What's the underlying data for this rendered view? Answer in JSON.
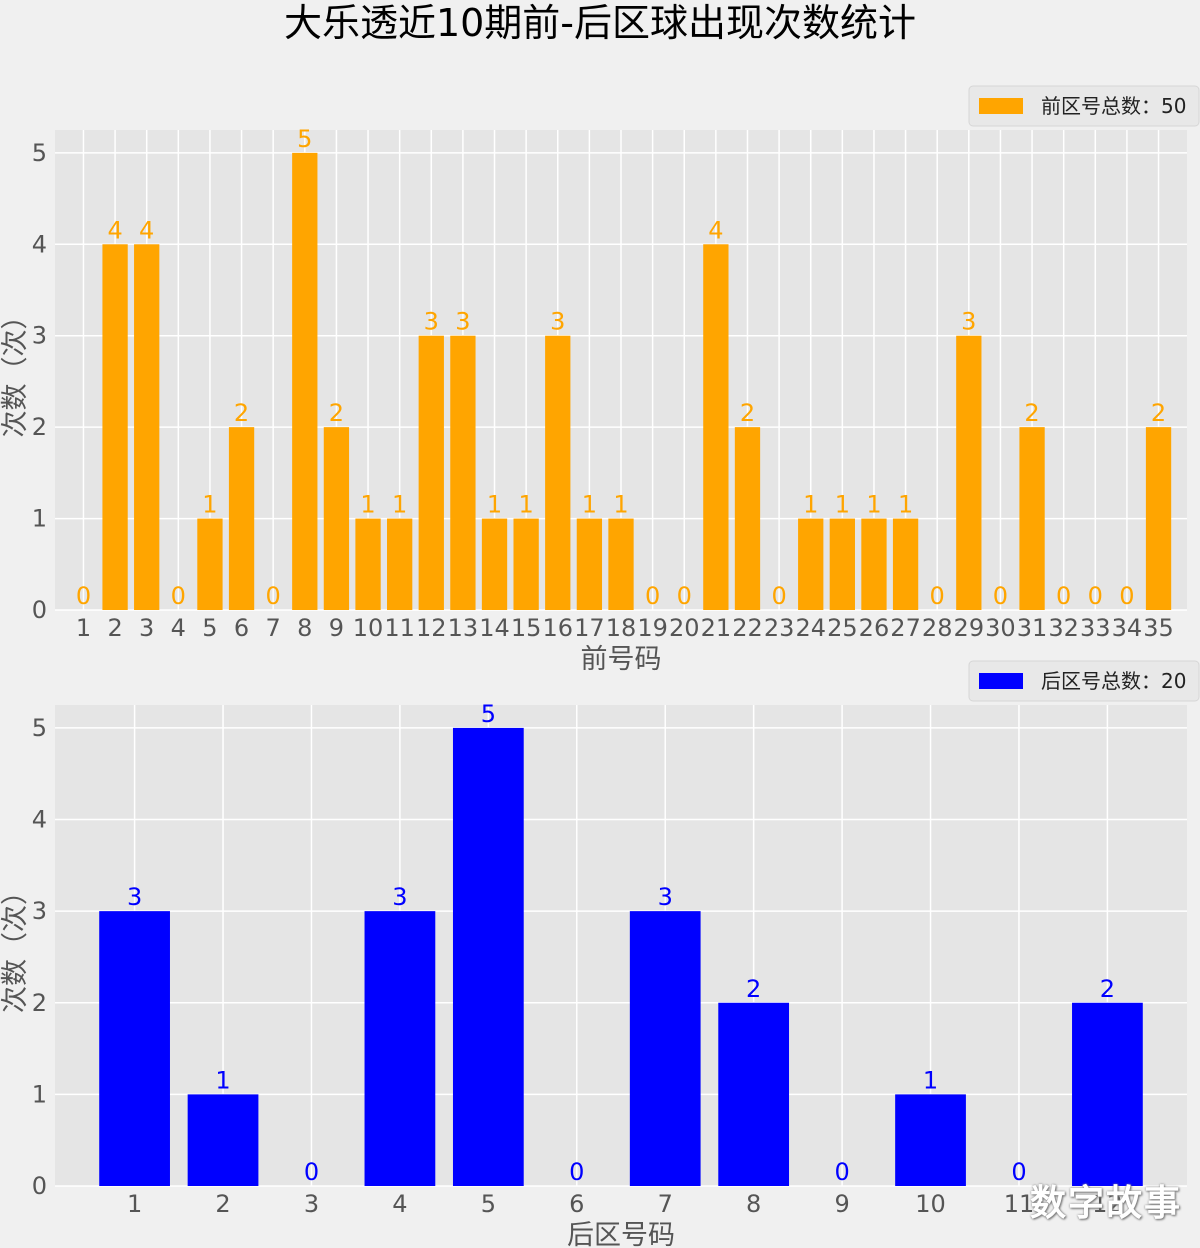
{
  "title": "大乐透近10期前-后区球出现次数统计",
  "watermark": "数字故事",
  "colors": {
    "figure_bg": "#f0f0f0",
    "axes_bg": "#e5e5e5",
    "grid": "#ffffff",
    "tick_text": "#555555",
    "front_bar": "#ffa500",
    "back_bar": "#0000ff"
  },
  "chart_data": [
    {
      "type": "bar",
      "categories": [
        "1",
        "2",
        "3",
        "4",
        "5",
        "6",
        "7",
        "8",
        "9",
        "10",
        "11",
        "12",
        "13",
        "14",
        "15",
        "16",
        "17",
        "18",
        "19",
        "20",
        "21",
        "22",
        "23",
        "24",
        "25",
        "26",
        "27",
        "28",
        "29",
        "30",
        "31",
        "32",
        "33",
        "34",
        "35"
      ],
      "values": [
        0,
        4,
        4,
        0,
        1,
        2,
        0,
        5,
        2,
        1,
        1,
        3,
        3,
        1,
        1,
        3,
        1,
        1,
        0,
        0,
        4,
        2,
        0,
        1,
        1,
        1,
        1,
        0,
        3,
        0,
        2,
        0,
        0,
        0,
        2
      ],
      "series_name": "前区号总数：50",
      "xlabel": "前号码",
      "ylabel": "次数（次）",
      "ylim": [
        0,
        5.25
      ],
      "yticks": [
        0,
        1,
        2,
        3,
        4,
        5
      ],
      "grid": true,
      "legend": "top-right",
      "color": "#ffa500"
    },
    {
      "type": "bar",
      "categories": [
        "1",
        "2",
        "3",
        "4",
        "5",
        "6",
        "7",
        "8",
        "9",
        "10",
        "11",
        "12"
      ],
      "values": [
        3,
        1,
        0,
        3,
        5,
        0,
        3,
        2,
        0,
        1,
        0,
        2
      ],
      "series_name": "后区号总数：20",
      "xlabel": "后区号码",
      "ylabel": "次数（次）",
      "ylim": [
        0,
        5.25
      ],
      "yticks": [
        0,
        1,
        2,
        3,
        4,
        5
      ],
      "grid": true,
      "legend": "top-right",
      "color": "#0000ff"
    }
  ]
}
